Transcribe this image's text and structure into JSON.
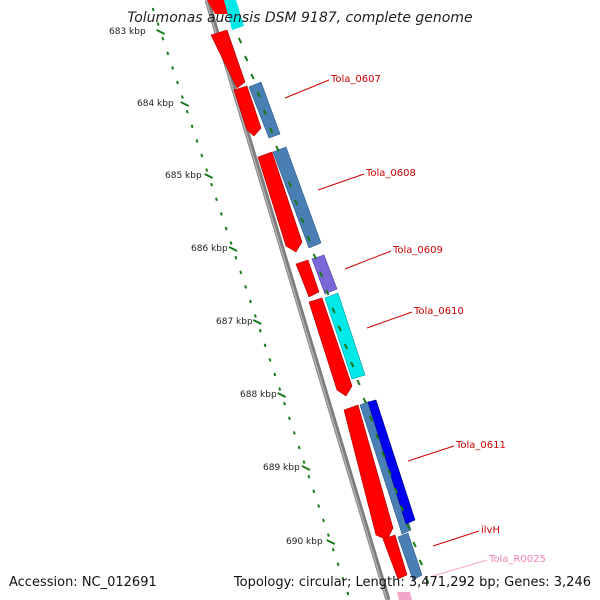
{
  "title": "Tolumonas auensis DSM 9187, complete genome",
  "accession": "Accession: NC_012691",
  "summary": "Topology: circular; Length: 3,471,292 bp; Genes: 3,246",
  "ticks": [
    {
      "label": "683 kbp",
      "pos": 683
    },
    {
      "label": "684 kbp",
      "pos": 684
    },
    {
      "label": "685 kbp",
      "pos": 685
    },
    {
      "label": "686 kbp",
      "pos": 686
    },
    {
      "label": "687 kbp",
      "pos": 687
    },
    {
      "label": "688 kbp",
      "pos": 688
    },
    {
      "label": "689 kbp",
      "pos": 689
    },
    {
      "label": "690 kbp",
      "pos": 690
    }
  ],
  "labels": [
    {
      "text": "Tola_0607",
      "color": "#cc0000"
    },
    {
      "text": "Tola_0608",
      "color": "#cc0000"
    },
    {
      "text": "Tola_0609",
      "color": "#cc0000"
    },
    {
      "text": "Tola_0610",
      "color": "#cc0000"
    },
    {
      "text": "Tola_0611",
      "color": "#cc0000"
    },
    {
      "text": "ilvH",
      "color": "#cc0000"
    },
    {
      "text": "Tola_R0025",
      "color": "#f080b8"
    }
  ],
  "colors": {
    "cds": "#ff0000",
    "cds_dark": "#a00000",
    "protein": "#4a7fb5",
    "protein_dark": "#2c5a88",
    "cyan": "#00e8e8",
    "purple": "#7b68d8",
    "blue": "#0000ee",
    "rna": "#f4a6c8",
    "backbone": "#8a8a8a",
    "tick": "#1a7a1a"
  }
}
